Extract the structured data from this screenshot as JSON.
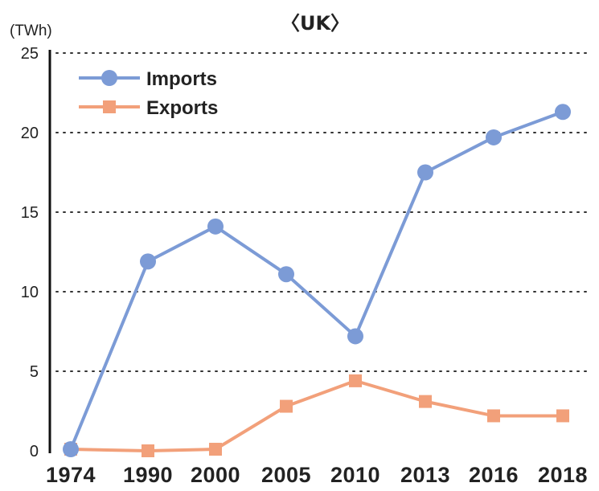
{
  "chart_data": {
    "type": "line",
    "title": "〈UK〉",
    "unit_label": "(TWh)",
    "categories": [
      "1974",
      "1990",
      "2000",
      "2005",
      "2010",
      "2013",
      "2016",
      "2018"
    ],
    "ylim": [
      0,
      25
    ],
    "yticks": [
      "0",
      "5",
      "10",
      "15",
      "20",
      "25"
    ],
    "grid": true,
    "legend_position": "top-left",
    "series": [
      {
        "name": "Imports",
        "values": [
          0.1,
          11.9,
          14.1,
          11.1,
          7.2,
          17.5,
          19.7,
          21.3
        ],
        "color": "#7c9bd6",
        "marker": "circle"
      },
      {
        "name": "Exports",
        "values": [
          0.1,
          0.0,
          0.1,
          2.8,
          4.4,
          3.1,
          2.2,
          2.2
        ],
        "color": "#f2a07a",
        "marker": "square"
      }
    ]
  }
}
